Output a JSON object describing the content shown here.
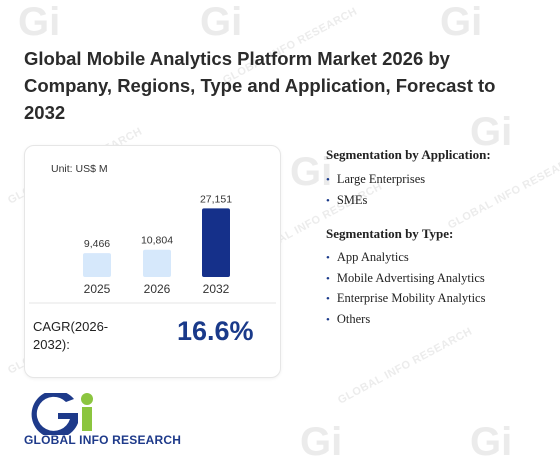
{
  "title": "Global Mobile Analytics Platform Market 2026 by Company, Regions, Type and Application, Forecast to 2032",
  "unit_label": "Unit: US$ M",
  "cagr": {
    "label": "CAGR(2026-2032):",
    "value": "16.6%"
  },
  "segmentation": {
    "application": {
      "title": "Segmentation by Application:",
      "items": [
        "Large Enterprises",
        "SMEs"
      ]
    },
    "type": {
      "title": "Segmentation by Type:",
      "items": [
        "App Analytics",
        "Mobile Advertising Analytics",
        "Enterprise Mobility Analytics",
        "Others"
      ]
    }
  },
  "logo": {
    "text": "GLOBAL INFO RESEARCH",
    "mark": "Gi"
  },
  "watermark": {
    "text": "GLOBAL INFO RESEARCH",
    "mark": "Gi"
  },
  "colors": {
    "bar_light": "#d6e8fb",
    "bar_dark": "#15308a",
    "accent": "#1a3a8a"
  },
  "chart_data": {
    "type": "bar",
    "categories": [
      "2025",
      "2026",
      "2032"
    ],
    "values": [
      9466,
      10804,
      27151
    ],
    "value_labels": [
      "9,466",
      "10,804",
      "27,151"
    ],
    "xlabel": "",
    "ylabel": "",
    "ylim": [
      0,
      30000
    ]
  }
}
